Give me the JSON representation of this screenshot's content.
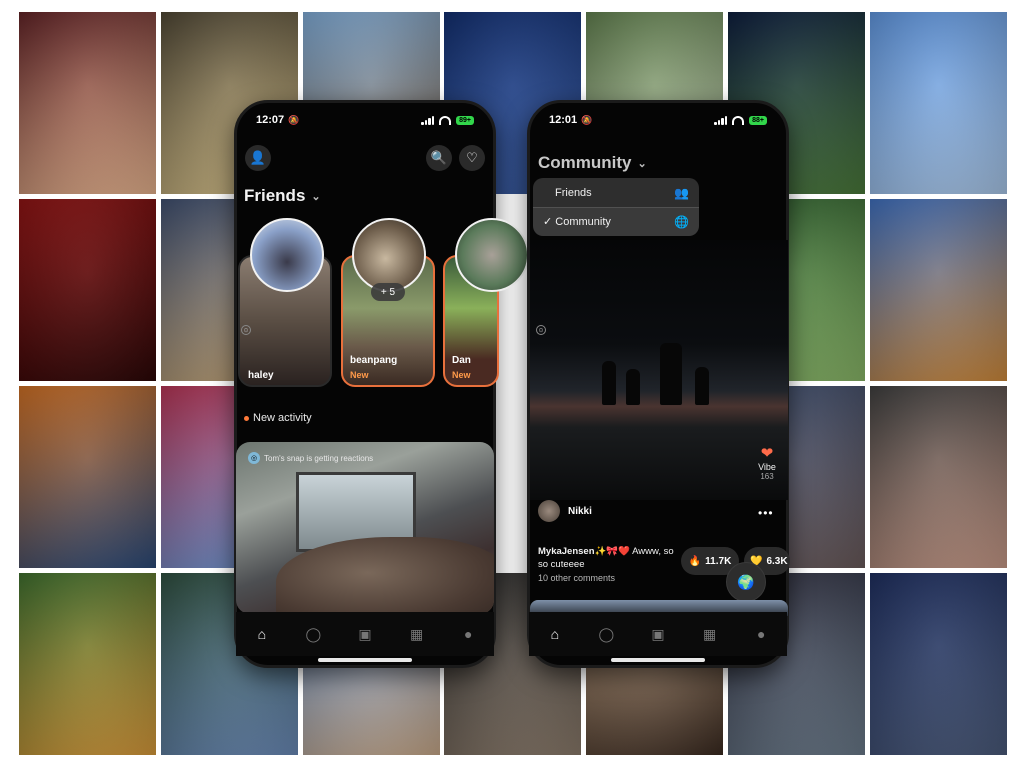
{
  "collage": {
    "tiles": [
      {
        "row": 0,
        "col": 0,
        "c1": "#5c1f22",
        "c2": "#e7b38e"
      },
      {
        "row": 0,
        "col": 1,
        "c1": "#4a4230",
        "c2": "#d8c28a"
      },
      {
        "row": 0,
        "col": 2,
        "c1": "#7aa5d0",
        "c2": "#8a6a4a"
      },
      {
        "row": 0,
        "col": 3,
        "c1": "#0e2a6a",
        "c2": "#3a5ea8"
      },
      {
        "row": 0,
        "col": 4,
        "c1": "#5c7a4a",
        "c2": "#c8d4b8"
      },
      {
        "row": 0,
        "col": 5,
        "c1": "#0a1a3a",
        "c2": "#4a7a3a"
      },
      {
        "row": 0,
        "col": 6,
        "c1": "#5a90d8",
        "c2": "#aac8ea"
      },
      {
        "row": 1,
        "col": 0,
        "c1": "#8a1010",
        "c2": "#2a0606"
      },
      {
        "row": 1,
        "col": 1,
        "c1": "#3a4a6a",
        "c2": "#c8a878"
      },
      {
        "row": 1,
        "col": 5,
        "c1": "#2a5a2a",
        "c2": "#8ab868"
      },
      {
        "row": 1,
        "col": 6,
        "c1": "#3a6ab8",
        "c2": "#d08a3a"
      },
      {
        "row": 2,
        "col": 0,
        "c1": "#c86a20",
        "c2": "#2a4a7a"
      },
      {
        "row": 2,
        "col": 1,
        "c1": "#b03050",
        "c2": "#6a9ad8"
      },
      {
        "row": 2,
        "col": 5,
        "c1": "#3a4a6a",
        "c2": "#6a5a5a"
      },
      {
        "row": 2,
        "col": 6,
        "c1": "#3a3a3a",
        "c2": "#c89a88"
      },
      {
        "row": 3,
        "col": 0,
        "c1": "#3a6a2a",
        "c2": "#d89a3a"
      },
      {
        "row": 3,
        "col": 1,
        "c1": "#2a4a3a",
        "c2": "#6a8ab8"
      },
      {
        "row": 3,
        "col": 2,
        "c1": "#6a9ad8",
        "c2": "#c8a888"
      },
      {
        "row": 3,
        "col": 3,
        "c1": "#2a2a2a",
        "c2": "#8a7a6a"
      },
      {
        "row": 3,
        "col": 4,
        "c1": "#c8a888",
        "c2": "#3a2a20"
      },
      {
        "row": 3,
        "col": 5,
        "c1": "#2a2a3a",
        "c2": "#6a7a8a"
      },
      {
        "row": 3,
        "col": 6,
        "c1": "#1a2a5a",
        "c2": "#4a5a7a"
      }
    ]
  },
  "left_phone": {
    "status": {
      "time": "12:07",
      "battery": "89+"
    },
    "header": {
      "title": "Friends"
    },
    "friends": [
      {
        "name": "haley",
        "is_new": false
      },
      {
        "name": "beanpang",
        "is_new": true,
        "new_label": "New"
      },
      {
        "name": "Dan",
        "is_new": true,
        "new_label": "New"
      }
    ],
    "badge_count": "+ 5",
    "activity_label": "New activity",
    "snap_tag": "Tom's snap is getting reactions"
  },
  "right_phone": {
    "status": {
      "time": "12:01",
      "battery": "88+"
    },
    "header": {
      "title": "Community"
    },
    "menu": {
      "items": [
        {
          "label": "Friends",
          "checked": false,
          "icon": "people-icon"
        },
        {
          "label": "✓ Community",
          "checked": true,
          "icon": "globe-icon"
        }
      ]
    },
    "vibe": {
      "label": "Vibe",
      "count": "163"
    },
    "poster": {
      "name": "Nikki"
    },
    "comment": {
      "author": "MykaJensen",
      "emoji": "✨🎀❤️",
      "text": "Awww, so so cuteeee",
      "more": "10 other comments"
    },
    "reactions": [
      {
        "emoji": "🔥",
        "count": "11.7K"
      },
      {
        "emoji": "💛",
        "count": "6.3K"
      }
    ]
  },
  "tabbar_icons": [
    "home-icon",
    "chat-icon",
    "camera-icon",
    "stack-icon",
    "avatar-icon"
  ]
}
